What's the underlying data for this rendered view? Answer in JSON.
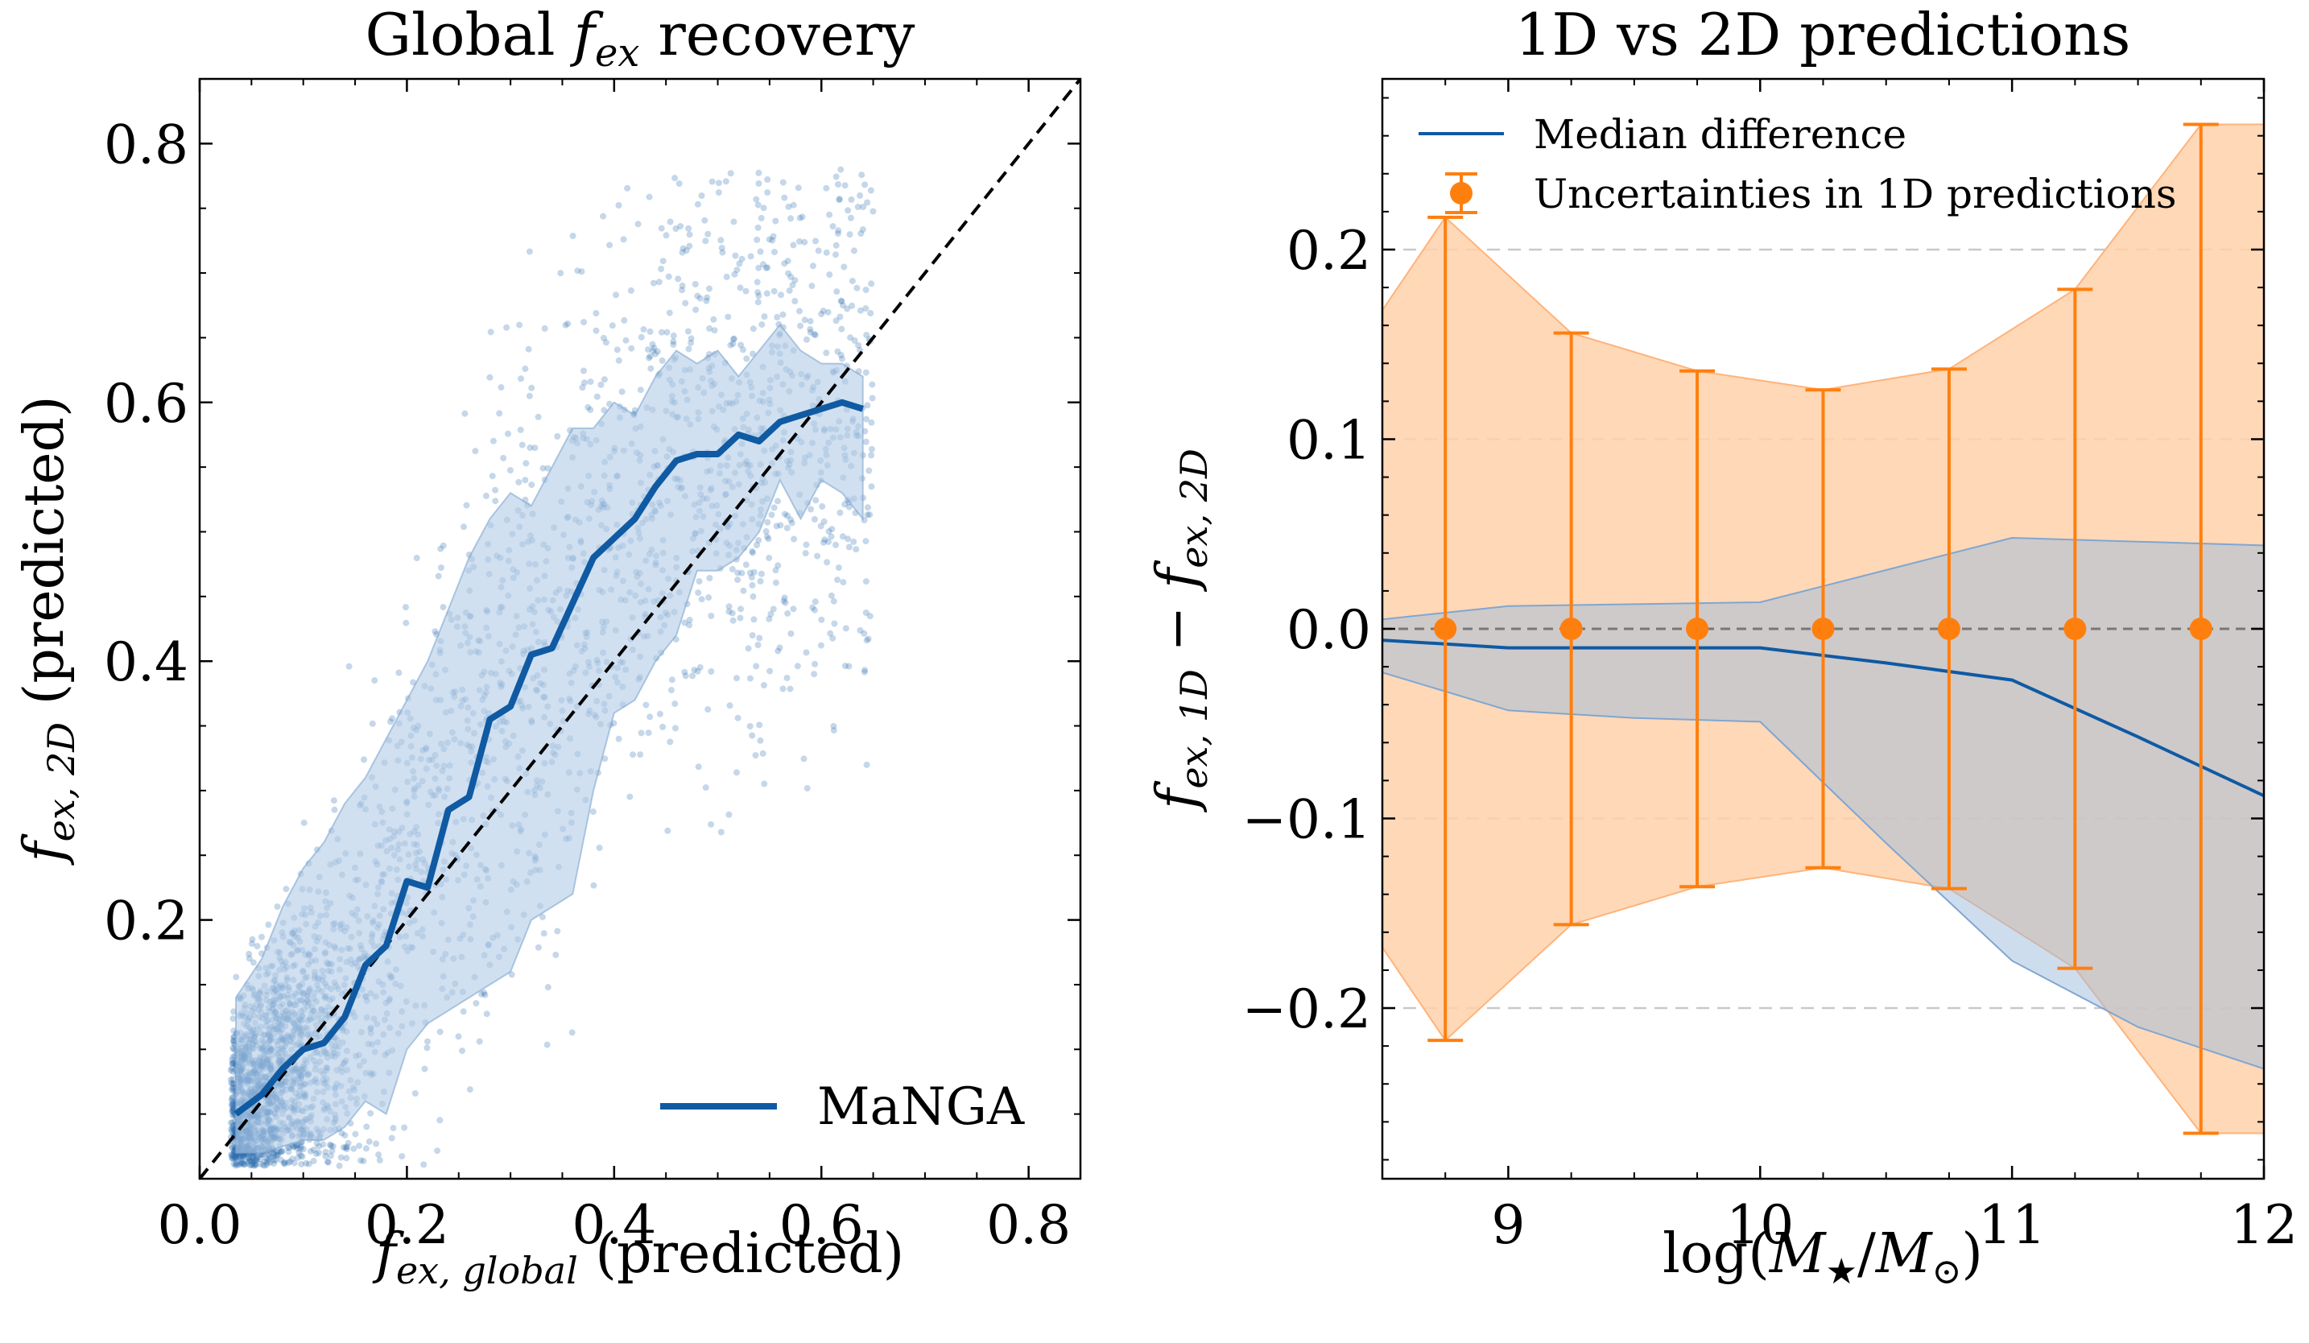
{
  "chart_data": [
    {
      "type": "scatter",
      "title": "Global f_ex recovery",
      "title_parts": {
        "prefix": "Global ",
        "symbol": "f",
        "sub": "ex",
        "suffix": " recovery"
      },
      "xlabel": "f_ex, global (predicted)",
      "xlabel_parts": {
        "symbol": "f",
        "sub": "ex, global",
        "suffix": " (predicted)"
      },
      "ylabel": "f_ex, 2D (predicted)",
      "ylabel_parts": {
        "symbol": "f",
        "sub": "ex, 2D",
        "suffix": " (predicted)"
      },
      "xlim": [
        0.0,
        0.85
      ],
      "ylim": [
        0.0,
        0.85
      ],
      "xticks": [
        "0.0",
        "0.2",
        "0.4",
        "0.6",
        "0.8"
      ],
      "yticks": [
        "0.2",
        "0.4",
        "0.6",
        "0.8"
      ],
      "scatter_note": "Several thousand individual MaNGA galaxies (semi-transparent points)",
      "identity_line": {
        "from": [
          0.0,
          0.0
        ],
        "to": [
          0.85,
          0.85
        ],
        "style": "dashed"
      },
      "median_line": {
        "name": "MaNGA",
        "x": [
          0.035,
          0.06,
          0.08,
          0.1,
          0.12,
          0.14,
          0.16,
          0.18,
          0.2,
          0.22,
          0.24,
          0.26,
          0.28,
          0.3,
          0.32,
          0.34,
          0.36,
          0.38,
          0.4,
          0.42,
          0.44,
          0.46,
          0.48,
          0.5,
          0.52,
          0.54,
          0.56,
          0.58,
          0.6,
          0.62,
          0.64
        ],
        "y": [
          0.05,
          0.065,
          0.085,
          0.1,
          0.105,
          0.125,
          0.165,
          0.18,
          0.23,
          0.225,
          0.285,
          0.295,
          0.355,
          0.365,
          0.405,
          0.41,
          0.445,
          0.48,
          0.495,
          0.51,
          0.535,
          0.555,
          0.56,
          0.56,
          0.575,
          0.57,
          0.585,
          0.59,
          0.595,
          0.6,
          0.595
        ],
        "band_upper": [
          0.14,
          0.17,
          0.21,
          0.24,
          0.26,
          0.29,
          0.31,
          0.34,
          0.37,
          0.4,
          0.44,
          0.48,
          0.51,
          0.53,
          0.52,
          0.55,
          0.58,
          0.58,
          0.6,
          0.59,
          0.62,
          0.64,
          0.63,
          0.64,
          0.62,
          0.64,
          0.66,
          0.64,
          0.63,
          0.63,
          0.62
        ],
        "band_lower": [
          0.02,
          0.02,
          0.025,
          0.03,
          0.03,
          0.04,
          0.06,
          0.05,
          0.1,
          0.12,
          0.13,
          0.14,
          0.15,
          0.16,
          0.2,
          0.21,
          0.22,
          0.3,
          0.36,
          0.37,
          0.4,
          0.42,
          0.47,
          0.47,
          0.48,
          0.5,
          0.54,
          0.51,
          0.54,
          0.53,
          0.51
        ]
      },
      "legend": {
        "location": "lower-right",
        "entries": [
          "MaNGA"
        ]
      }
    },
    {
      "type": "line",
      "title": "1D vs 2D predictions",
      "xlabel": "log(M★/M⊙)",
      "xlabel_parts": {
        "prefix": "log(",
        "symbol": "M",
        "sub1": "★",
        "mid": "/",
        "symbol2": "M",
        "sub2": "⊙",
        "suffix": ")"
      },
      "ylabel": "f_ex, 1D − f_ex, 2D",
      "ylabel_parts": {
        "symbol": "f",
        "sub": "ex, 1D",
        "minus": " − ",
        "symbol2": "f",
        "sub2": "ex, 2D"
      },
      "xlim": [
        8.5,
        12.0
      ],
      "ylim": [
        -0.29,
        0.29
      ],
      "xticks": [
        "9",
        "10",
        "11",
        "12"
      ],
      "yticks": [
        "−0.2",
        "−0.1",
        "0.0",
        "0.1",
        "0.2"
      ],
      "gridlines_y": [
        -0.2,
        -0.1,
        0.0,
        0.1,
        0.2
      ],
      "series": [
        {
          "name": "Median difference",
          "x": [
            8.5,
            9.0,
            9.5,
            10.0,
            10.5,
            11.0,
            11.5,
            12.0
          ],
          "y": [
            -0.006,
            -0.01,
            -0.01,
            -0.01,
            -0.018,
            -0.027,
            -0.057,
            -0.088
          ],
          "band_upper": [
            0.005,
            0.012,
            0.013,
            0.014,
            0.031,
            0.048,
            0.046,
            0.044
          ],
          "band_lower": [
            -0.023,
            -0.043,
            -0.047,
            -0.049,
            -0.113,
            -0.175,
            -0.21,
            -0.232
          ]
        },
        {
          "name": "Uncertainties in 1D predictions",
          "x": [
            8.75,
            9.25,
            9.75,
            10.25,
            10.75,
            11.25,
            11.75
          ],
          "y": [
            0.0,
            0.0,
            0.0,
            0.0,
            0.0,
            0.0,
            0.0
          ],
          "error": [
            0.217,
            0.156,
            0.136,
            0.126,
            0.137,
            0.179,
            0.266
          ],
          "band_x": [
            8.5,
            8.75,
            9.25,
            9.75,
            10.25,
            10.75,
            11.25,
            11.75,
            12.0
          ],
          "band_upper": [
            0.168,
            0.217,
            0.156,
            0.136,
            0.126,
            0.137,
            0.179,
            0.266,
            0.266
          ],
          "band_lower": [
            -0.168,
            -0.217,
            -0.156,
            -0.136,
            -0.126,
            -0.137,
            -0.179,
            -0.266,
            -0.266
          ]
        }
      ],
      "legend": {
        "location": "top-left",
        "entries": [
          "Median difference",
          "Uncertainties in 1D predictions"
        ]
      }
    }
  ],
  "colors": {
    "blue": "#0f5aa3",
    "blue_band": "#b3cce6",
    "orange": "#ff7f0e",
    "orange_band": "#ffd1aa"
  }
}
